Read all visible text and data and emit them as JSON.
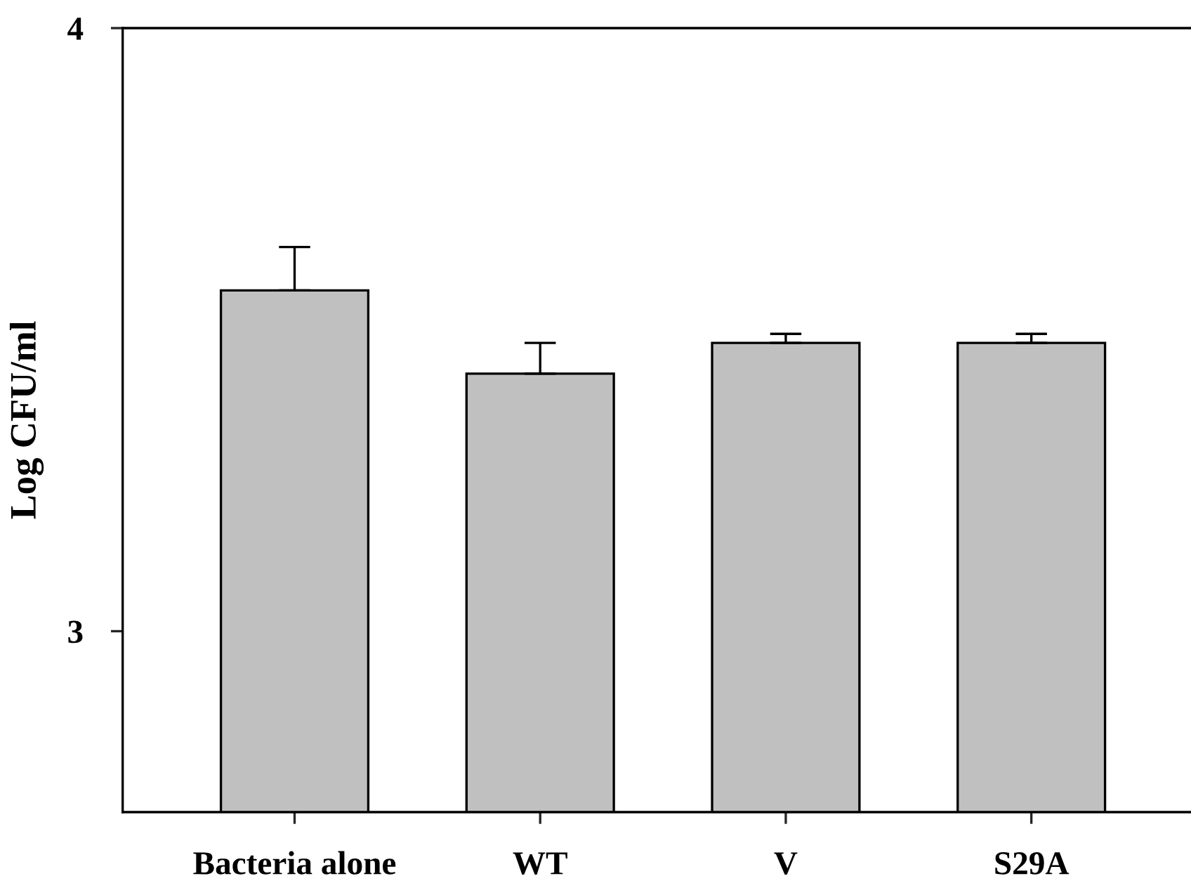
{
  "chart_data": {
    "type": "bar",
    "ylabel": "Log CFU/ml",
    "categories": [
      "Bacteria alone",
      "WT",
      "V",
      "S29A"
    ],
    "values": [
      3.565,
      3.427,
      3.478,
      3.478
    ],
    "errors": [
      [
        3.565,
        3.637
      ],
      [
        3.427,
        3.478
      ],
      [
        3.478,
        3.493
      ],
      [
        3.478,
        3.493
      ]
    ],
    "color": "#c0c0c0",
    "ylim": [
      2.7,
      4
    ],
    "yticks": [
      3,
      4
    ],
    "grid": false,
    "legend": false
  }
}
